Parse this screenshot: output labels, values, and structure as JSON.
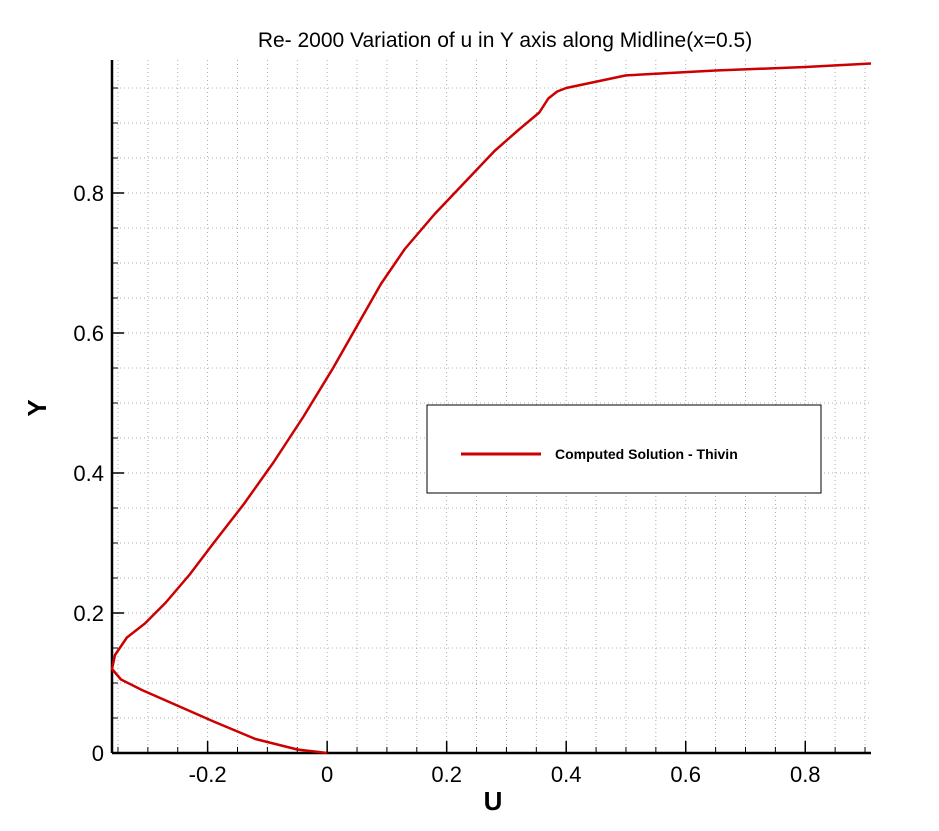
{
  "chart_data": {
    "type": "line",
    "title": "Re- 2000 Variation of u in Y axis along Midline(x=0.5)",
    "xlabel": "U",
    "ylabel": "Y",
    "xlim": [
      -0.36,
      0.91
    ],
    "ylim": [
      0,
      0.99
    ],
    "x_ticks": [
      -0.2,
      0,
      0.2,
      0.4,
      0.6,
      0.8
    ],
    "x_tick_labels": [
      "-0.2",
      "0",
      "0.2",
      "0.4",
      "0.6",
      "0.8"
    ],
    "y_ticks": [
      0,
      0.2,
      0.4,
      0.6,
      0.8
    ],
    "y_tick_labels": [
      "0",
      "0.2",
      "0.4",
      "0.6",
      "0.8"
    ],
    "grid": true,
    "legend_position": "middle-right",
    "series": [
      {
        "name": "Computed Solution - Thivin",
        "color": "#cc0000",
        "x": [
          0.0,
          -0.05,
          -0.12,
          -0.19,
          -0.27,
          -0.31,
          -0.345,
          -0.36,
          -0.355,
          -0.335,
          -0.305,
          -0.27,
          -0.23,
          -0.19,
          -0.14,
          -0.09,
          -0.04,
          0.01,
          0.05,
          0.09,
          0.13,
          0.18,
          0.23,
          0.28,
          0.32,
          0.355,
          0.37,
          0.385,
          0.4,
          0.5,
          0.65,
          0.8,
          0.91
        ],
        "y": [
          0.0,
          0.005,
          0.02,
          0.045,
          0.075,
          0.09,
          0.105,
          0.12,
          0.14,
          0.165,
          0.185,
          0.215,
          0.255,
          0.3,
          0.355,
          0.415,
          0.48,
          0.55,
          0.61,
          0.67,
          0.72,
          0.77,
          0.815,
          0.86,
          0.89,
          0.915,
          0.935,
          0.945,
          0.95,
          0.968,
          0.975,
          0.98,
          0.985
        ]
      }
    ]
  }
}
